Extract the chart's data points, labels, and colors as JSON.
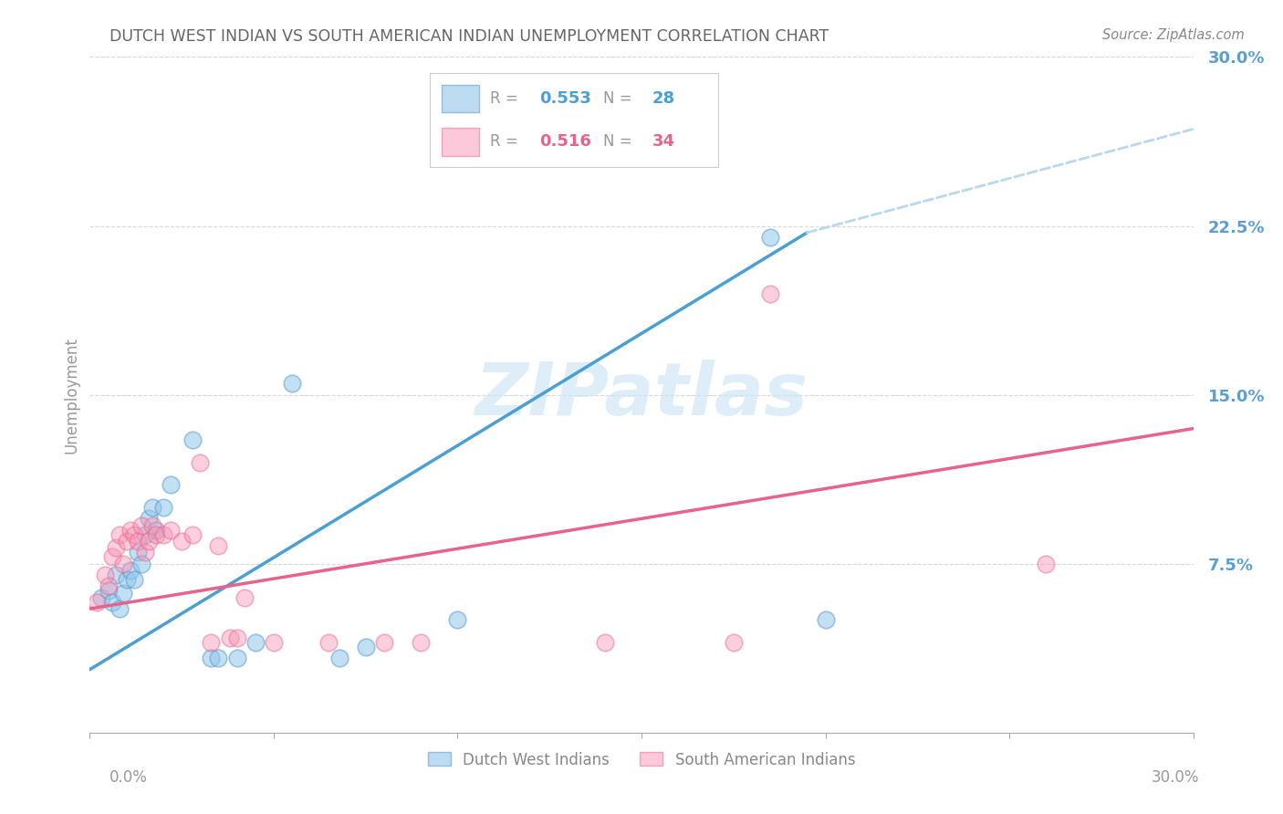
{
  "title": "DUTCH WEST INDIAN VS SOUTH AMERICAN INDIAN UNEMPLOYMENT CORRELATION CHART",
  "source": "Source: ZipAtlas.com",
  "ylabel": "Unemployment",
  "y_ticks": [
    0.0,
    0.075,
    0.15,
    0.225,
    0.3
  ],
  "y_tick_labels": [
    "",
    "7.5%",
    "15.0%",
    "22.5%",
    "30.0%"
  ],
  "x_range": [
    0.0,
    0.3
  ],
  "y_range": [
    0.0,
    0.3
  ],
  "watermark": "ZIPatlas",
  "legend_labels": [
    "Dutch West Indians",
    "South American Indians"
  ],
  "blue_color": "#93c6e8",
  "pink_color": "#f895b4",
  "blue_edge_color": "#5a9fd4",
  "pink_edge_color": "#e8638a",
  "blue_line_color": "#4a9fd4",
  "pink_line_color": "#e8638a",
  "blue_dash_color": "#b8d8ee",
  "axis_label_color": "#5a9fd4",
  "grid_color": "#d8d8d8",
  "background_color": "#ffffff",
  "title_color": "#666666",
  "source_color": "#888888",
  "blue_scatter": [
    [
      0.003,
      0.06
    ],
    [
      0.005,
      0.063
    ],
    [
      0.006,
      0.058
    ],
    [
      0.007,
      0.07
    ],
    [
      0.008,
      0.055
    ],
    [
      0.009,
      0.062
    ],
    [
      0.01,
      0.068
    ],
    [
      0.011,
      0.072
    ],
    [
      0.012,
      0.068
    ],
    [
      0.013,
      0.08
    ],
    [
      0.014,
      0.075
    ],
    [
      0.015,
      0.088
    ],
    [
      0.016,
      0.095
    ],
    [
      0.017,
      0.1
    ],
    [
      0.018,
      0.09
    ],
    [
      0.02,
      0.1
    ],
    [
      0.022,
      0.11
    ],
    [
      0.028,
      0.13
    ],
    [
      0.033,
      0.033
    ],
    [
      0.035,
      0.033
    ],
    [
      0.04,
      0.033
    ],
    [
      0.045,
      0.04
    ],
    [
      0.055,
      0.155
    ],
    [
      0.068,
      0.033
    ],
    [
      0.075,
      0.038
    ],
    [
      0.1,
      0.05
    ],
    [
      0.185,
      0.22
    ],
    [
      0.2,
      0.05
    ]
  ],
  "pink_scatter": [
    [
      0.002,
      0.058
    ],
    [
      0.004,
      0.07
    ],
    [
      0.005,
      0.065
    ],
    [
      0.006,
      0.078
    ],
    [
      0.007,
      0.082
    ],
    [
      0.008,
      0.088
    ],
    [
      0.009,
      0.075
    ],
    [
      0.01,
      0.085
    ],
    [
      0.011,
      0.09
    ],
    [
      0.012,
      0.088
    ],
    [
      0.013,
      0.085
    ],
    [
      0.014,
      0.092
    ],
    [
      0.015,
      0.08
    ],
    [
      0.016,
      0.085
    ],
    [
      0.017,
      0.092
    ],
    [
      0.018,
      0.088
    ],
    [
      0.02,
      0.088
    ],
    [
      0.022,
      0.09
    ],
    [
      0.025,
      0.085
    ],
    [
      0.028,
      0.088
    ],
    [
      0.03,
      0.12
    ],
    [
      0.033,
      0.04
    ],
    [
      0.035,
      0.083
    ],
    [
      0.038,
      0.042
    ],
    [
      0.04,
      0.042
    ],
    [
      0.042,
      0.06
    ],
    [
      0.05,
      0.04
    ],
    [
      0.065,
      0.04
    ],
    [
      0.08,
      0.04
    ],
    [
      0.09,
      0.04
    ],
    [
      0.14,
      0.04
    ],
    [
      0.175,
      0.04
    ],
    [
      0.185,
      0.195
    ],
    [
      0.26,
      0.075
    ]
  ],
  "blue_line_solid": {
    "x0": 0.0,
    "y0": 0.028,
    "x1": 0.195,
    "y1": 0.222
  },
  "blue_line_dash": {
    "x0": 0.195,
    "y0": 0.222,
    "x1": 0.3,
    "y1": 0.268
  },
  "pink_line": {
    "x0": 0.0,
    "y0": 0.055,
    "x1": 0.3,
    "y1": 0.135
  },
  "legend_box": {
    "R1": "0.553",
    "N1": "28",
    "R2": "0.516",
    "N2": "34"
  }
}
